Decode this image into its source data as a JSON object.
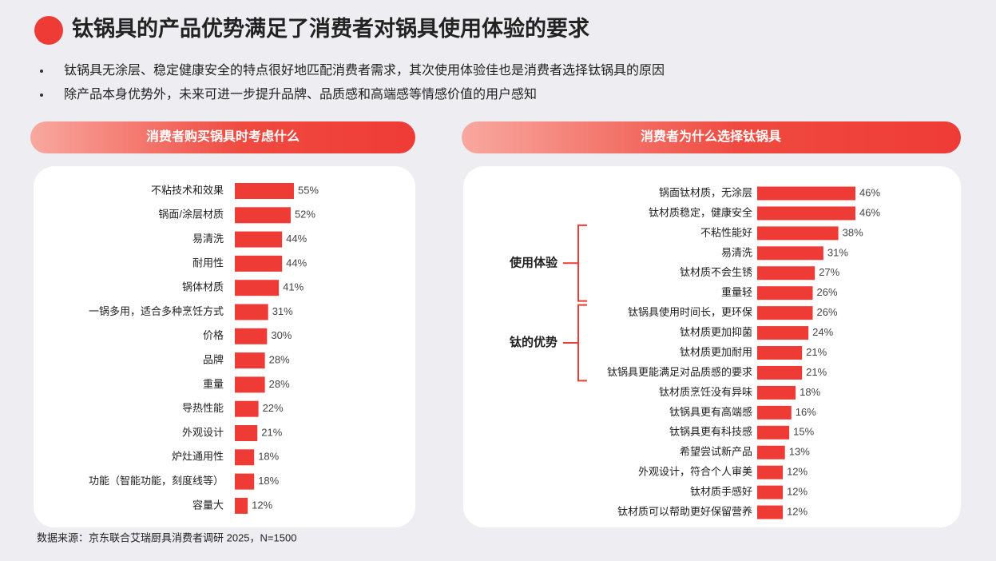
{
  "title": "钛锅具的产品优势满足了消费者对锅具使用体验的要求",
  "bullets": [
    "钛锅具无涂层、稳定健康安全的特点很好地匹配消费者需求，其次使用体验佳也是消费者选择钛锅具的原因",
    "除产品本身优势外，未来可进一步提升品牌、品质感和高端感等情感价值的用户感知"
  ],
  "source": "数据来源：京东联合艾瑞厨具消费者调研 2025，N=1500",
  "chart_data": [
    {
      "type": "hbar",
      "title": "消费者购买锅具时考虑什么",
      "color": "#ef3b36",
      "xlim": [
        0,
        100
      ],
      "categories": [
        "不粘技术和效果",
        "锅面/涂层材质",
        "易清洗",
        "耐用性",
        "锅体材质",
        "一锅多用，适合多种烹饪方式",
        "价格",
        "品牌",
        "重量",
        "导热性能",
        "外观设计",
        "炉灶通用性",
        "功能（智能功能，刻度线等）",
        "容量大"
      ],
      "values": [
        55,
        52,
        44,
        44,
        41,
        31,
        30,
        28,
        28,
        22,
        21,
        18,
        18,
        12
      ],
      "value_labels": [
        "55%",
        "52%",
        "44%",
        "44%",
        "41%",
        "31%",
        "30%",
        "28%",
        "28%",
        "22%",
        "21%",
        "18%",
        "18%",
        "12%"
      ]
    },
    {
      "type": "hbar",
      "title": "消费者为什么选择钛锅具",
      "color": "#ef3b36",
      "xlim": [
        0,
        100
      ],
      "categories": [
        "锅面钛材质，无涂层",
        "钛材质稳定，健康安全",
        "不粘性能好",
        "易清洗",
        "钛材质不会生锈",
        "重量轻",
        "钛锅具使用时间长，更环保",
        "钛材质更加抑菌",
        "钛材质更加耐用",
        "钛锅具更能满足对品质感的要求",
        "钛材质烹饪没有异味",
        "钛锅具更有高端感",
        "钛锅具更有科技感",
        "希望尝试新产品",
        "外观设计，符合个人审美",
        "钛材质手感好",
        "钛材质可以帮助更好保留营养"
      ],
      "values": [
        46,
        46,
        38,
        31,
        27,
        26,
        26,
        24,
        21,
        21,
        18,
        16,
        15,
        13,
        12,
        12,
        12
      ],
      "value_labels": [
        "46%",
        "46%",
        "38%",
        "31%",
        "27%",
        "26%",
        "26%",
        "24%",
        "21%",
        "21%",
        "18%",
        "16%",
        "15%",
        "13%",
        "12%",
        "12%",
        "12%"
      ],
      "groups": [
        {
          "name": "使用体验",
          "members": [
            2,
            3,
            4,
            5
          ]
        },
        {
          "name": "钛的优势",
          "members": [
            6,
            7,
            8,
            9
          ]
        }
      ]
    }
  ]
}
